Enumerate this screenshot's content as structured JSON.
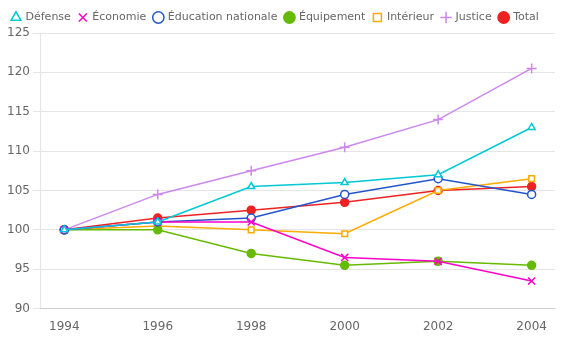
{
  "chart_data": {
    "type": "line",
    "x": [
      1994,
      1996,
      1998,
      2000,
      2002,
      2004
    ],
    "series": [
      {
        "name": "Défense",
        "color": "#00c8d4",
        "marker": "triangle-open",
        "values": [
          100,
          101,
          105.5,
          106,
          107,
          113
        ]
      },
      {
        "name": "Économie",
        "color": "#ff00c8",
        "marker": "x",
        "values": [
          100,
          101,
          101,
          96.5,
          96,
          93.5
        ]
      },
      {
        "name": "Éducation nationale",
        "color": "#2255cc",
        "marker": "circle-open",
        "values": [
          100,
          101,
          101.5,
          104.5,
          106.5,
          104.5
        ]
      },
      {
        "name": "Équipement",
        "color": "#66bb00",
        "marker": "circle",
        "values": [
          100,
          100,
          97,
          95.5,
          96,
          95.5
        ]
      },
      {
        "name": "Intérieur",
        "color": "#ffaa00",
        "marker": "square-open",
        "values": [
          100,
          100.5,
          100,
          99.5,
          105,
          106.5
        ]
      },
      {
        "name": "Justice",
        "color": "#cc88ee",
        "marker": "plus",
        "values": [
          100,
          104.5,
          107.5,
          110.5,
          114,
          120.5
        ]
      },
      {
        "name": "Total",
        "color": "#ee2222",
        "marker": "circle",
        "values": [
          100,
          101.5,
          102.5,
          103.5,
          105,
          105.5
        ]
      }
    ],
    "xlim": [
      1993.5,
      2004.5
    ],
    "xticks": [
      1994,
      1996,
      1998,
      2000,
      2002,
      2004
    ],
    "ylim": [
      90,
      125
    ],
    "yticks": [
      90,
      95,
      100,
      105,
      110,
      115,
      120,
      125
    ],
    "grid": "y",
    "legend": "upper left"
  }
}
